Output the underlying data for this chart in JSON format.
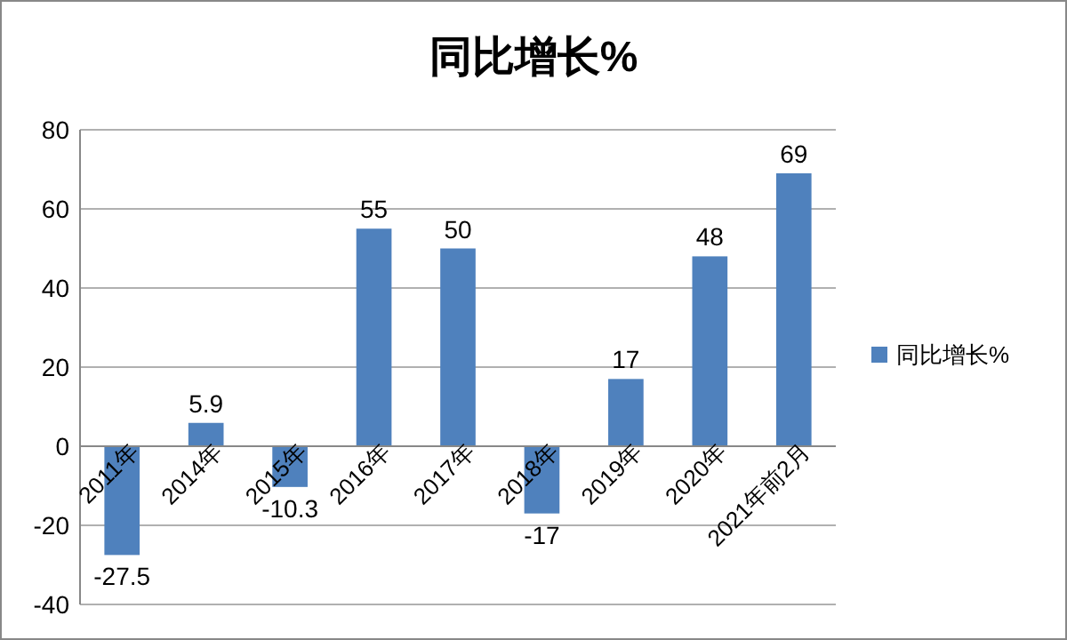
{
  "chart_data": {
    "type": "bar",
    "title": "同比增长%",
    "categories": [
      "2011年",
      "2014年",
      "2015年",
      "2016年",
      "2017年",
      "2018年",
      "2019年",
      "2020年",
      "2021年前2月"
    ],
    "series": [
      {
        "name": "同比增长%",
        "color": "#4f81bd",
        "values": [
          -27.5,
          5.9,
          -10.3,
          55,
          50,
          -17,
          17,
          48,
          69
        ]
      }
    ],
    "ylim": [
      -40,
      80
    ],
    "yticks": [
      -40,
      -20,
      0,
      20,
      40,
      60,
      80
    ],
    "grid": "y",
    "legend": "right",
    "data_labels": true
  }
}
